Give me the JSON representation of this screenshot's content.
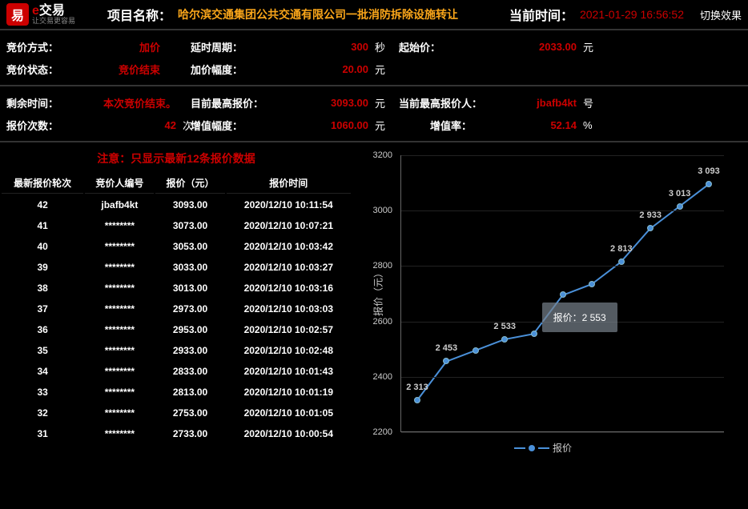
{
  "header": {
    "logo_main_e": "e",
    "logo_main_rest": "交易",
    "logo_sub": "让交易更容易",
    "proj_label": "项目名称：",
    "proj_name": "哈尔滨交通集团公共交通有限公司一批消防拆除设施转让",
    "cur_time_label": "当前时间：",
    "cur_time": "2021-01-29 16:56:52",
    "switch": "切换效果"
  },
  "info1": {
    "bid_method_label": "竞价方式：",
    "bid_method": "加价",
    "delay_label": "延时周期：",
    "delay": "300",
    "delay_unit": "秒",
    "start_label": "起始价：",
    "start": "2033.00",
    "start_unit": "元",
    "status_label": "竞价状态：",
    "status": "竞价结束",
    "incr_label": "加价幅度：",
    "incr": "20.00",
    "incr_unit": "元"
  },
  "info2": {
    "remain_label": "剩余时间：",
    "remain": "本次竞价结束。",
    "max_label": "目前最高报价：",
    "max": "3093.00",
    "max_unit": "元",
    "maxp_label": "当前最高报价人：",
    "maxp": "jbafb4kt",
    "maxp_unit": "号",
    "count_label": "报价次数：",
    "count": "42",
    "count_unit": "次",
    "addval_label": "增值幅度：",
    "addval": "1060.00",
    "addval_unit": "元",
    "rate_label": "增值率：",
    "rate": "52.14",
    "rate_unit": "%"
  },
  "table": {
    "notice": "注意：只显示最新12条报价数据",
    "cols": [
      "最新报价轮次",
      "竞价人编号",
      "报价（元）",
      "报价时间"
    ],
    "rows": [
      [
        "42",
        "jbafb4kt",
        "3093.00",
        "2020/12/10 10:11:54"
      ],
      [
        "41",
        "********",
        "3073.00",
        "2020/12/10 10:07:21"
      ],
      [
        "40",
        "********",
        "3053.00",
        "2020/12/10 10:03:42"
      ],
      [
        "39",
        "********",
        "3033.00",
        "2020/12/10 10:03:27"
      ],
      [
        "38",
        "********",
        "3013.00",
        "2020/12/10 10:03:16"
      ],
      [
        "37",
        "********",
        "2973.00",
        "2020/12/10 10:03:03"
      ],
      [
        "36",
        "********",
        "2953.00",
        "2020/12/10 10:02:57"
      ],
      [
        "35",
        "********",
        "2933.00",
        "2020/12/10 10:02:48"
      ],
      [
        "34",
        "********",
        "2833.00",
        "2020/12/10 10:01:43"
      ],
      [
        "33",
        "********",
        "2813.00",
        "2020/12/10 10:01:19"
      ],
      [
        "32",
        "********",
        "2753.00",
        "2020/12/10 10:01:05"
      ],
      [
        "31",
        "********",
        "2733.00",
        "2020/12/10 10:00:54"
      ]
    ]
  },
  "chart": {
    "type": "line",
    "ylabel": "报价（元）",
    "ylim": [
      2200,
      3200
    ],
    "ytick_step": 200,
    "line_color": "#4a90d9",
    "marker_color": "#4a90d9",
    "background_color": "#000000",
    "grid_color": "#222222",
    "label_fontsize": 11,
    "points": [
      2313,
      2453,
      2493,
      2533,
      2553,
      2693,
      2733,
      2813,
      2933,
      3013,
      3093
    ],
    "point_labels": [
      "2 313",
      "2 453",
      "",
      "2 533",
      "",
      "",
      "",
      "2 813",
      "2 933",
      "3 013",
      "3 093"
    ],
    "tooltip": "报价：2 553",
    "tooltip_index": 4,
    "legend": "报价"
  }
}
